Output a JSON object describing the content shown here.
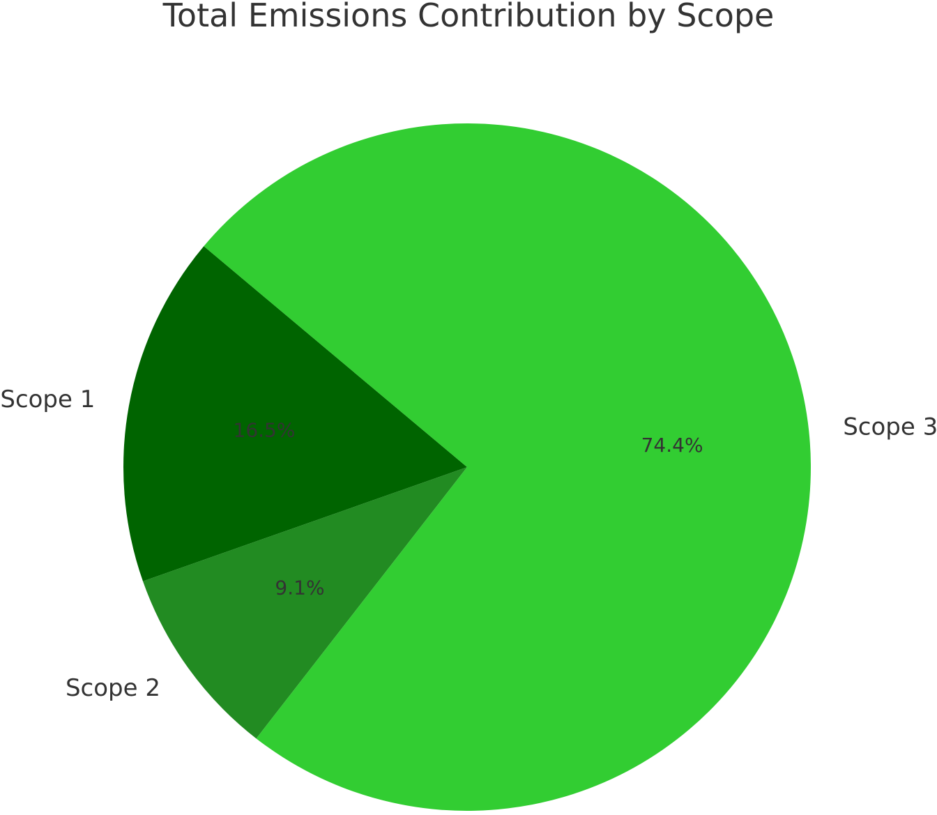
{
  "chart_data": {
    "type": "pie",
    "title": "Total Emissions Contribution by Scope",
    "categories": [
      "Scope 1",
      "Scope 2",
      "Scope 3"
    ],
    "values": [
      16.5,
      9.1,
      74.4
    ],
    "value_labels": [
      "16.5%",
      "9.1%",
      "74.4%"
    ],
    "colors": [
      "#006400",
      "#228B22",
      "#32CD32"
    ],
    "start_angle_deg": 140,
    "direction": "counterclockwise",
    "legend": "none"
  }
}
